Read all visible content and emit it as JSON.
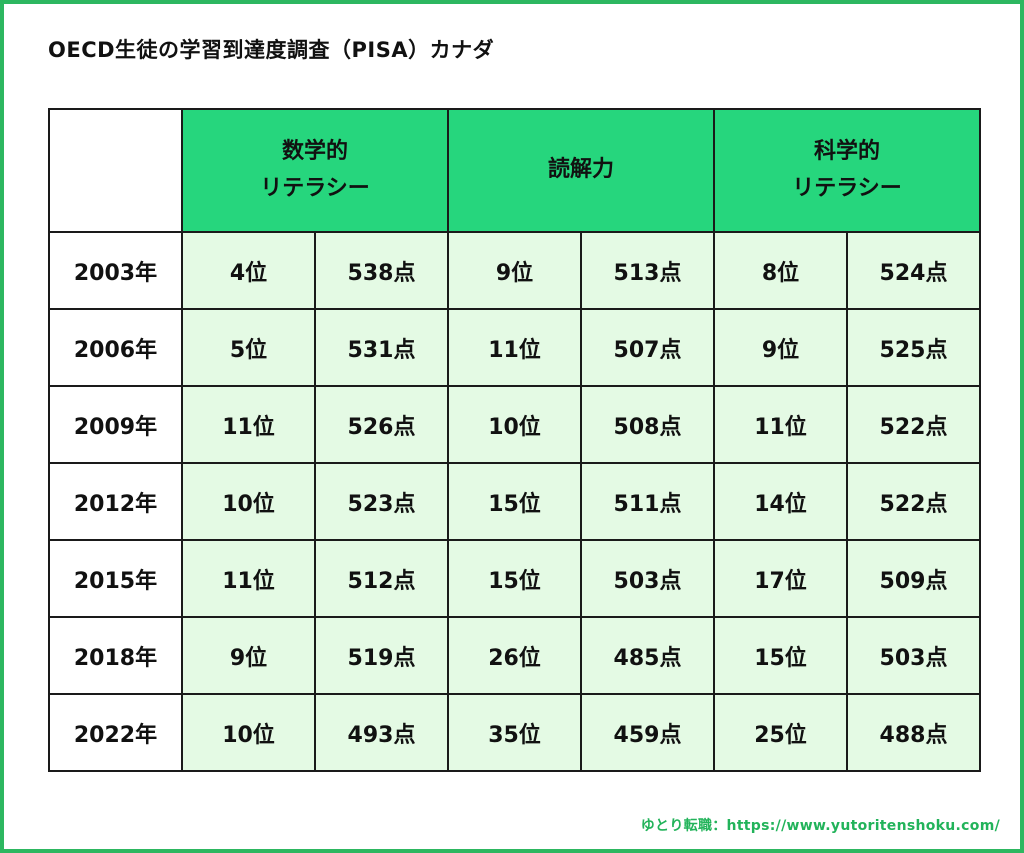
{
  "title": "OECD生徒の学習到達度調査（PISA）カナダ",
  "colors": {
    "border": "#2db760",
    "header_fill": "#26d67d",
    "cell_fill": "#e4fae4",
    "footer_text": "#22b35a"
  },
  "table": {
    "headers": [
      {
        "lines": [
          "数学的",
          "リテラシー"
        ]
      },
      {
        "lines": [
          "読解力"
        ]
      },
      {
        "lines": [
          "科学的",
          "リテラシー"
        ]
      }
    ],
    "rows": [
      {
        "year": "2003年",
        "cells": [
          "4位",
          "538点",
          "9位",
          "513点",
          "8位",
          "524点"
        ]
      },
      {
        "year": "2006年",
        "cells": [
          "5位",
          "531点",
          "11位",
          "507点",
          "9位",
          "525点"
        ]
      },
      {
        "year": "2009年",
        "cells": [
          "11位",
          "526点",
          "10位",
          "508点",
          "11位",
          "522点"
        ]
      },
      {
        "year": "2012年",
        "cells": [
          "10位",
          "523点",
          "15位",
          "511点",
          "14位",
          "522点"
        ]
      },
      {
        "year": "2015年",
        "cells": [
          "11位",
          "512点",
          "15位",
          "503点",
          "17位",
          "509点"
        ]
      },
      {
        "year": "2018年",
        "cells": [
          "9位",
          "519点",
          "26位",
          "485点",
          "15位",
          "503点"
        ]
      },
      {
        "year": "2022年",
        "cells": [
          "10位",
          "493点",
          "35位",
          "459点",
          "25位",
          "488点"
        ]
      }
    ]
  },
  "footer": "ゆとり転職：https://www.yutoritenshoku.com/"
}
